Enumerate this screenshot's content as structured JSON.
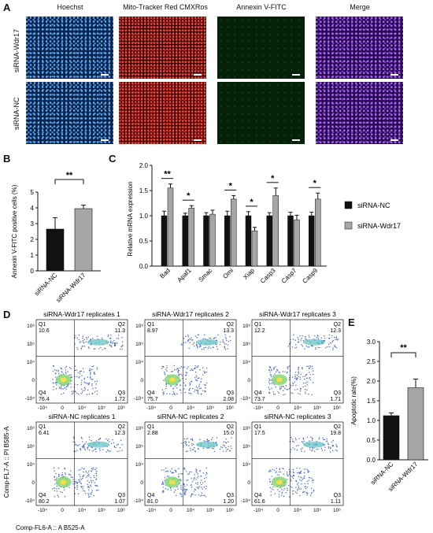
{
  "panels": {
    "a": "A",
    "b": "B",
    "c": "C",
    "d": "D",
    "e": "E"
  },
  "micro": {
    "columns": [
      "Hoechst",
      "Mito-Tracker Red CMXRos",
      "Annexin V-FITC",
      "Merge"
    ],
    "rows": [
      "siRNA-Wdr17",
      "siRNA-NC"
    ]
  },
  "chart_b": {
    "type": "bar",
    "ylabel": "Annexin V-FITC positive cells (%)",
    "categories": [
      "siRNA-NC",
      "siRNA-Wdr17"
    ],
    "values": [
      2.65,
      3.95
    ],
    "errors": [
      0.72,
      0.22
    ],
    "ylim": [
      0,
      5
    ],
    "yticks": [
      "0",
      "1",
      "2",
      "3",
      "4",
      "5"
    ],
    "sig": "**",
    "colors": [
      "#111111",
      "#a6a6a6"
    ]
  },
  "chart_data": [
    {
      "type": "bar",
      "ylabel": "Annexin V-FITC positive cells (%)",
      "categories": [
        "siRNA-NC",
        "siRNA-Wdr17"
      ],
      "values": [
        2.65,
        3.95
      ],
      "ylim": [
        0,
        5
      ]
    },
    {
      "type": "bar",
      "ylabel": "Relative mRNA expression",
      "categories": [
        "Bad",
        "Apaf1",
        "Smac",
        "Omi",
        "Xiap",
        "Casp3",
        "Casp7",
        "Casp9"
      ],
      "series": [
        {
          "name": "siRNA-NC",
          "values": [
            1.0,
            1.0,
            1.0,
            1.0,
            1.0,
            1.0,
            1.0,
            1.0
          ]
        },
        {
          "name": "siRNA-Wdr17",
          "values": [
            1.55,
            1.15,
            1.03,
            1.33,
            0.7,
            1.4,
            0.92,
            1.33
          ]
        }
      ],
      "ylim": [
        0,
        2.0
      ]
    },
    {
      "type": "bar",
      "ylabel": "Apoptotic rate(%)",
      "categories": [
        "siRNA-NC",
        "siRNA-Wdr17"
      ],
      "values": [
        1.12,
        1.83
      ],
      "ylim": [
        0,
        3.0
      ]
    }
  ],
  "chart_c": {
    "ylabel": "Relative mRNA expression",
    "categories": [
      "Bad",
      "Apaf1",
      "Smac",
      "Omi",
      "Xiap",
      "Casp3",
      "Casp7",
      "Casp9"
    ],
    "nc": [
      1.0,
      1.0,
      1.0,
      1.0,
      1.0,
      1.0,
      1.0,
      1.0
    ],
    "nc_err": [
      0.09,
      0.05,
      0.06,
      0.09,
      0.08,
      0.06,
      0.07,
      0.07
    ],
    "wd": [
      1.55,
      1.15,
      1.03,
      1.33,
      0.7,
      1.4,
      0.92,
      1.33
    ],
    "wd_err": [
      0.08,
      0.05,
      0.08,
      0.07,
      0.07,
      0.15,
      0.09,
      0.12
    ],
    "sig": [
      "**",
      "*",
      "",
      "*",
      "*",
      "*",
      "",
      "*"
    ],
    "ylim": [
      0,
      2.0
    ],
    "yticks": [
      "0.0",
      "0.5",
      "1.0",
      "1.5",
      "2.0"
    ],
    "legend": [
      "siRNA-NC",
      "siRNA-Wdr17"
    ],
    "colors": [
      "#111111",
      "#a6a6a6"
    ]
  },
  "flow": {
    "titles": [
      "siRNA-Wdr17 replicates  1",
      "siRNA-Wdr17 replicates 2",
      "siRNA-Wdr17 replicates 3",
      "siRNA-NC replicates  1",
      "siRNA-NC replicates  2",
      "siRNA-NC replicates  3"
    ],
    "quads": [
      {
        "q1": "10.6",
        "q2": "11.3",
        "q3": "1.72",
        "q4": "76.4"
      },
      {
        "q1": "8.97",
        "q2": "13.3",
        "q3": "2.08",
        "q4": "75.7"
      },
      {
        "q1": "12.2",
        "q2": "12.3",
        "q3": "1.71",
        "q4": "73.7"
      },
      {
        "q1": "6.41",
        "q2": "12.3",
        "q3": "1.07",
        "q4": "80.2"
      },
      {
        "q1": "2.88",
        "q2": "15.0",
        "q3": "1.20",
        "q4": "81.0"
      },
      {
        "q1": "17.5",
        "q2": "19.8",
        "q3": "1.11",
        "q4": "61.6"
      }
    ],
    "qlabels": [
      "Q1",
      "Q2",
      "Q3",
      "Q4"
    ],
    "yticks": [
      "10⁶",
      "10⁵",
      "10⁴",
      "0",
      "-10⁴"
    ],
    "xticks": [
      "-10⁴",
      "0",
      "10⁴",
      "10⁵",
      "10⁶"
    ],
    "ylabel": "Comp-FL7-A :: PI B585-A",
    "xlabel": "Comp-FL6-A :: A B525-A"
  },
  "chart_e": {
    "ylabel": "Apoptotic rate(%)",
    "categories": [
      "siRNA-NC",
      "siRNA-Wdr17"
    ],
    "values": [
      1.12,
      1.83
    ],
    "errors": [
      0.07,
      0.22
    ],
    "ylim": [
      0,
      3.0
    ],
    "yticks": [
      "0.0",
      "0.5",
      "1.0",
      "1.5",
      "2.0",
      "2.5",
      "3.0"
    ],
    "sig": "**",
    "colors": [
      "#111111",
      "#a6a6a6"
    ]
  }
}
